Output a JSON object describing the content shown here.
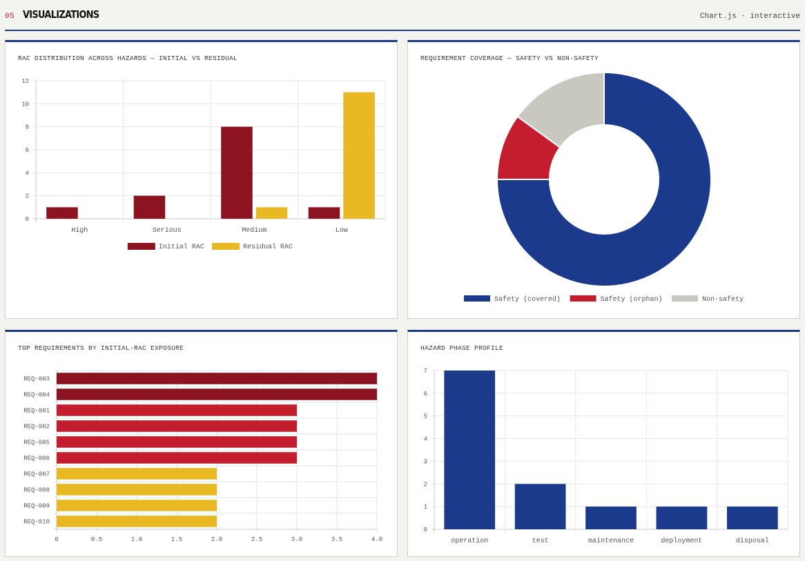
{
  "header": {
    "section_number": "05",
    "section_title": "VISUALIZATIONS",
    "meta": "Chart.js · interactive"
  },
  "colors": {
    "navy": "#1b3a8c",
    "dark_red": "#8b1420",
    "red": "#c41e2e",
    "yellow": "#e8b923",
    "gray": "#c9c8c0"
  },
  "chart_data": [
    {
      "type": "bar",
      "title": "RAC DISTRIBUTION ACROSS HAZARDS — INITIAL VS RESIDUAL",
      "categories": [
        "High",
        "Serious",
        "Medium",
        "Low"
      ],
      "series": [
        {
          "name": "Initial RAC",
          "values": [
            1,
            2,
            8,
            1
          ],
          "color": "#8b1420"
        },
        {
          "name": "Residual RAC",
          "values": [
            0,
            0,
            1,
            11
          ],
          "color": "#e8b923"
        }
      ],
      "ylim": [
        0,
        12
      ],
      "yticks": [
        "0",
        "2",
        "4",
        "6",
        "8",
        "10",
        "12"
      ],
      "legend": "bottom"
    },
    {
      "type": "pie",
      "title": "REQUIREMENT COVERAGE — SAFETY VS NON-SAFETY",
      "categories": [
        "Safety (covered)",
        "Safety (orphan)",
        "Non-safety"
      ],
      "values": [
        75,
        10,
        15
      ],
      "colors": [
        "#1b3a8c",
        "#c41e2e",
        "#c9c8c0"
      ],
      "legend": "bottom"
    },
    {
      "type": "bar",
      "orientation": "horizontal",
      "title": "TOP REQUIREMENTS BY INITIAL-RAC EXPOSURE",
      "categories": [
        "REQ-003",
        "REQ-004",
        "REQ-001",
        "REQ-002",
        "REQ-005",
        "REQ-006",
        "REQ-007",
        "REQ-008",
        "REQ-009",
        "REQ-010"
      ],
      "values": [
        4,
        4,
        3,
        3,
        3,
        3,
        2,
        2,
        2,
        2
      ],
      "colors": [
        "#8b1420",
        "#8b1420",
        "#c41e2e",
        "#c41e2e",
        "#c41e2e",
        "#c41e2e",
        "#e8b923",
        "#e8b923",
        "#e8b923",
        "#e8b923"
      ],
      "xlim": [
        0,
        4
      ],
      "xticks": [
        "0",
        "0.5",
        "1.0",
        "1.5",
        "2.0",
        "2.5",
        "3.0",
        "3.5",
        "4.0"
      ]
    },
    {
      "type": "bar",
      "title": "HAZARD PHASE PROFILE",
      "categories": [
        "operation",
        "test",
        "maintenance",
        "deployment",
        "disposal"
      ],
      "values": [
        7,
        2,
        1,
        1,
        1
      ],
      "color": "#1b3a8c",
      "ylim": [
        0,
        7
      ],
      "yticks": [
        "0",
        "1",
        "2",
        "3",
        "4",
        "5",
        "6",
        "7"
      ]
    }
  ]
}
